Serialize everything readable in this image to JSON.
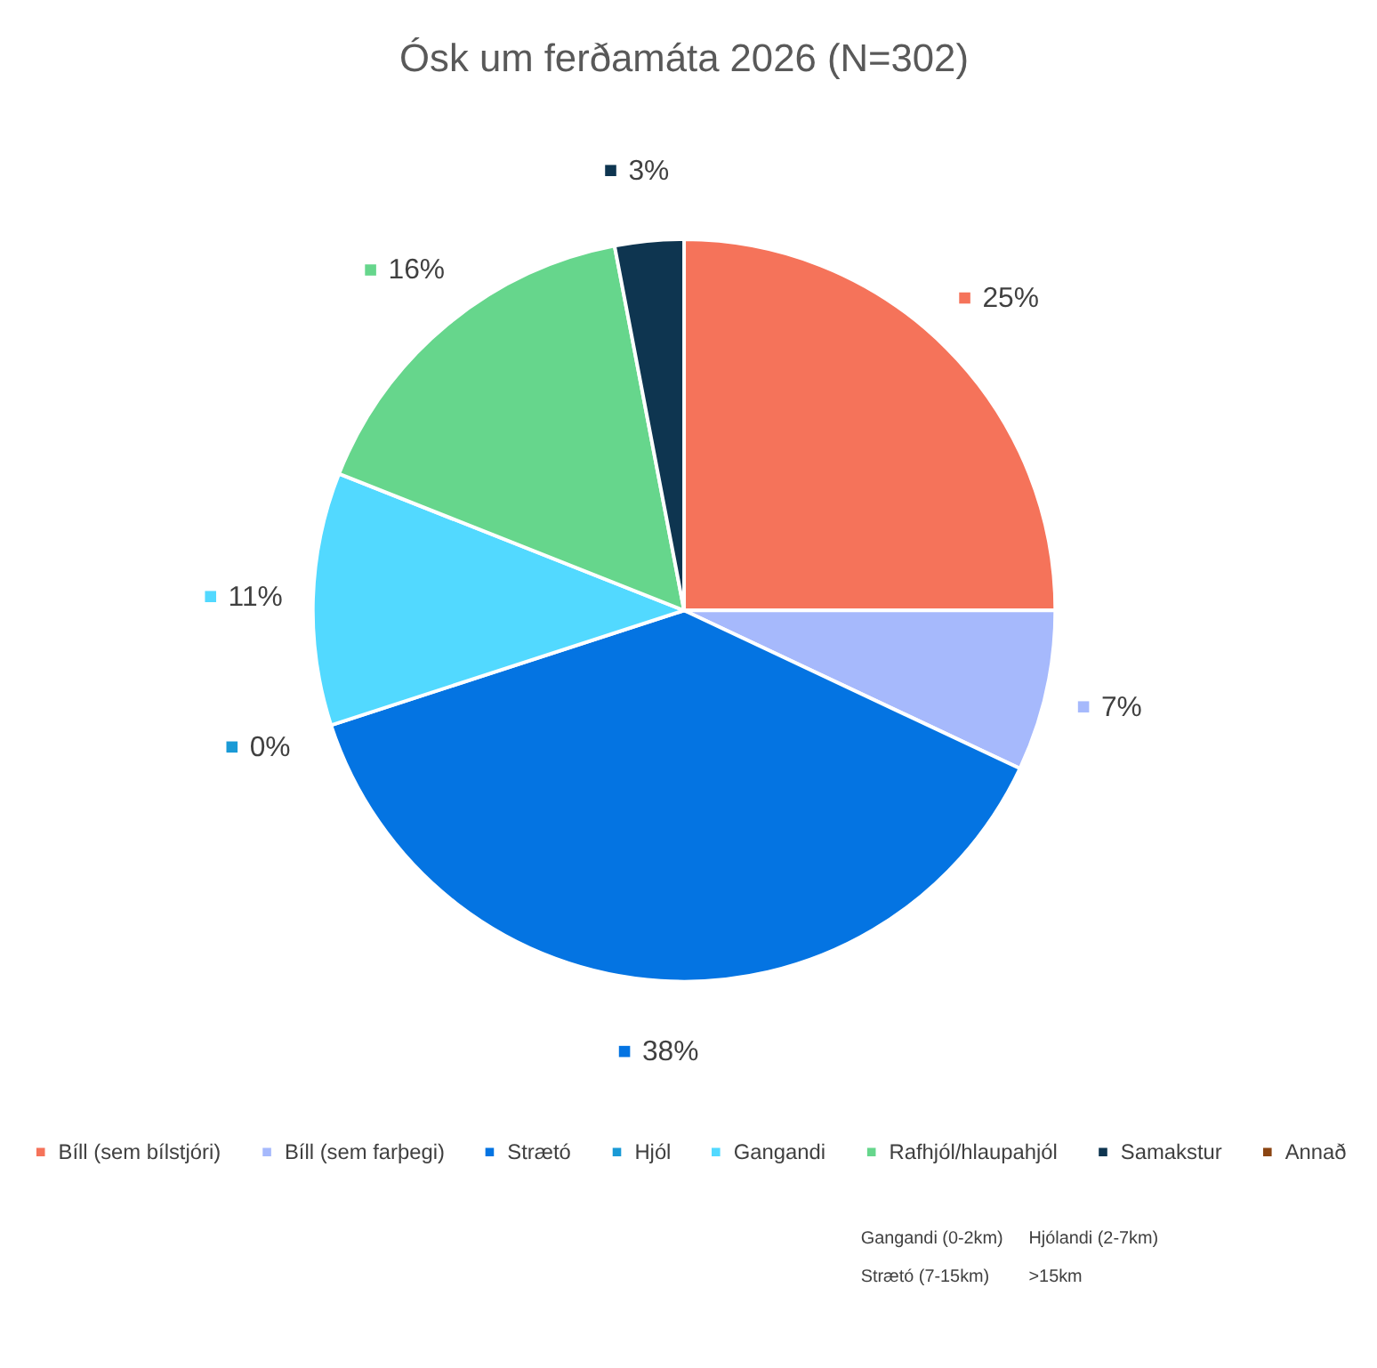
{
  "chart_data": {
    "type": "pie",
    "title": "Ósk um ferðamáta 2026 (N=302)",
    "categories": [
      "Bíll (sem bílstjóri)",
      "Bíll (sem farþegi)",
      "Strætó",
      "Hjól",
      "Gangandi",
      "Rafhjól/hlaupahjól",
      "Samakstur",
      "Annað"
    ],
    "values": [
      25,
      7,
      38,
      0,
      11,
      16,
      3,
      0
    ],
    "colors": [
      "#f5735a",
      "#a6b9fc",
      "#0474e2",
      "#1a9ad6",
      "#52d9ff",
      "#66d68c",
      "#0e3550",
      "#8b4513"
    ],
    "value_labels": [
      "25%",
      "7%",
      "38%",
      "0%",
      "11%",
      "16%",
      "3%",
      null
    ],
    "legend": "bottom",
    "annotations": [
      "Gangandi (0-2km)",
      "Hjólandi (2-7km)",
      "Strætó (7-15km)",
      ">15km"
    ]
  }
}
